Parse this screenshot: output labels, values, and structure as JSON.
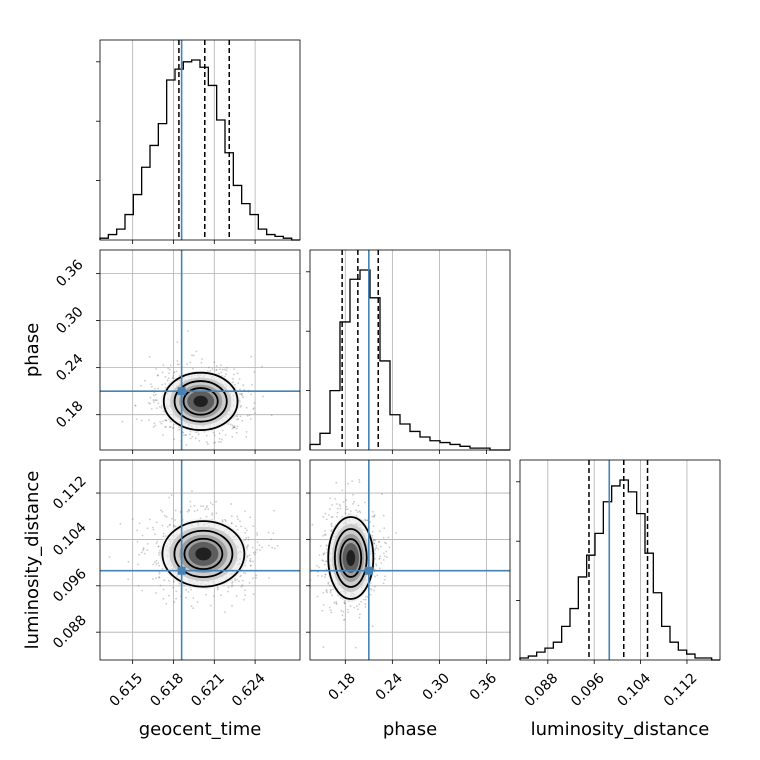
{
  "chart_data": {
    "type": "corner",
    "parameters": [
      "geocent_time",
      "phase",
      "luminosity_distance"
    ],
    "injection": {
      "geocent_time": 0.6186,
      "phase": 0.21,
      "luminosity_distance": 0.0986
    },
    "quantiles": {
      "geocent_time": [
        0.6184,
        0.6203,
        0.6221
      ],
      "phase": [
        0.176,
        0.196,
        0.222
      ],
      "luminosity_distance": [
        0.0951,
        0.1011,
        0.1052
      ]
    },
    "ranges": {
      "geocent_time": [
        0.6126,
        0.6273
      ],
      "phase": [
        0.135,
        0.39
      ],
      "luminosity_distance": [
        0.0832,
        0.1177
      ]
    },
    "ticks": {
      "geocent_time": [
        0.615,
        0.618,
        0.621,
        0.624
      ],
      "phase": [
        0.18,
        0.24,
        0.3,
        0.36
      ],
      "luminosity_distance": [
        0.088,
        0.096,
        0.104,
        0.112
      ]
    },
    "tick_labels": {
      "geocent_time": [
        "0.615",
        "0.618",
        "0.621",
        "0.624"
      ],
      "phase": [
        "0.18",
        "0.24",
        "0.30",
        "0.36"
      ],
      "luminosity_distance": [
        "0.088",
        "0.096",
        "0.104",
        "0.112"
      ]
    },
    "histograms": {
      "geocent_time": [
        1,
        3,
        6,
        14,
        25,
        40,
        52,
        64,
        88,
        94,
        98,
        99,
        95,
        85,
        66,
        48,
        30,
        20,
        14,
        6,
        3,
        2,
        1,
        0
      ],
      "phase": [
        3,
        9,
        32,
        69,
        92,
        97,
        82,
        48,
        19,
        14,
        10,
        7,
        5,
        4,
        3,
        2,
        1,
        1,
        0,
        0
      ],
      "luminosity_distance": [
        1,
        2,
        4,
        6,
        9,
        17,
        26,
        42,
        53,
        64,
        80,
        88,
        91,
        85,
        74,
        54,
        34,
        17,
        9,
        5,
        3,
        1,
        1,
        0
      ]
    },
    "pair_centers": {
      "phase|geocent_time": {
        "x": 0.62,
        "y": 0.197
      },
      "luminosity_distance|geocent_time": {
        "x": 0.6202,
        "y": 0.1015
      },
      "luminosity_distance|phase": {
        "x": 0.187,
        "y": 0.1008
      }
    },
    "grid": true
  }
}
